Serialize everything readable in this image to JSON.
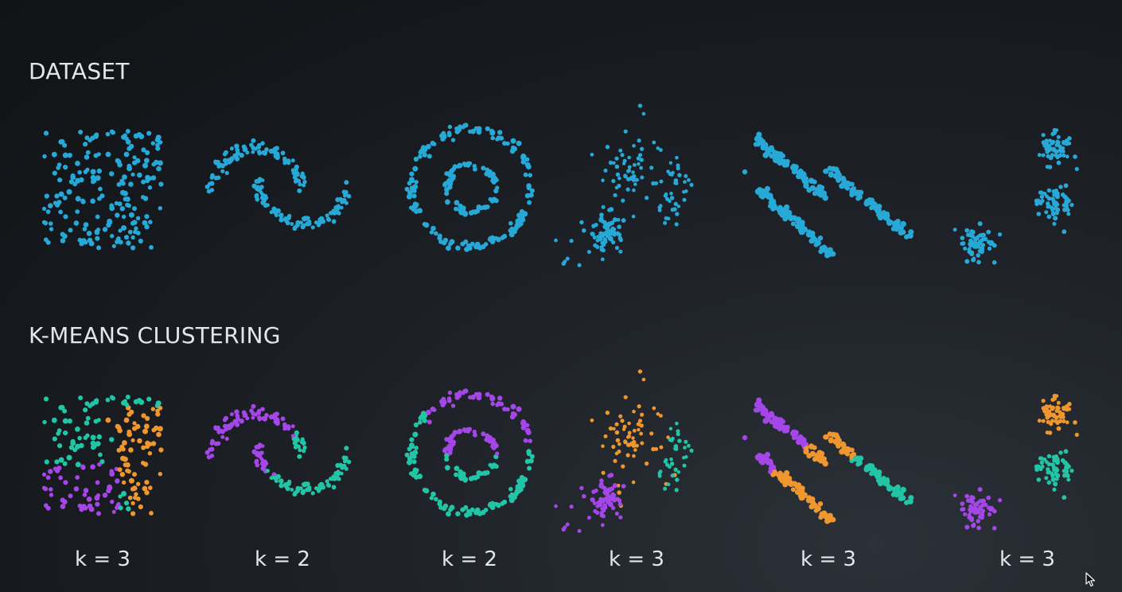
{
  "titles": {
    "dataset": "DATASET",
    "kmeans": "K-MEANS CLUSTERING"
  },
  "colors": {
    "unclustered": "#27a9d8",
    "cluster_purple": "#a446e8",
    "cluster_teal": "#22c5a5",
    "cluster_orange": "#f0962e"
  },
  "datasets": [
    {
      "name": "uniform-square",
      "k_label": "k = 3"
    },
    {
      "name": "two-moons",
      "k_label": "k = 2"
    },
    {
      "name": "concentric-circles",
      "k_label": "k = 2"
    },
    {
      "name": "varied-density-blobs",
      "k_label": "k = 3"
    },
    {
      "name": "anisotropic-stripes",
      "k_label": "k = 3"
    },
    {
      "name": "isotropic-blobs",
      "k_label": "k = 3"
    }
  ],
  "cursor_icon": "mouse-pointer-icon"
}
